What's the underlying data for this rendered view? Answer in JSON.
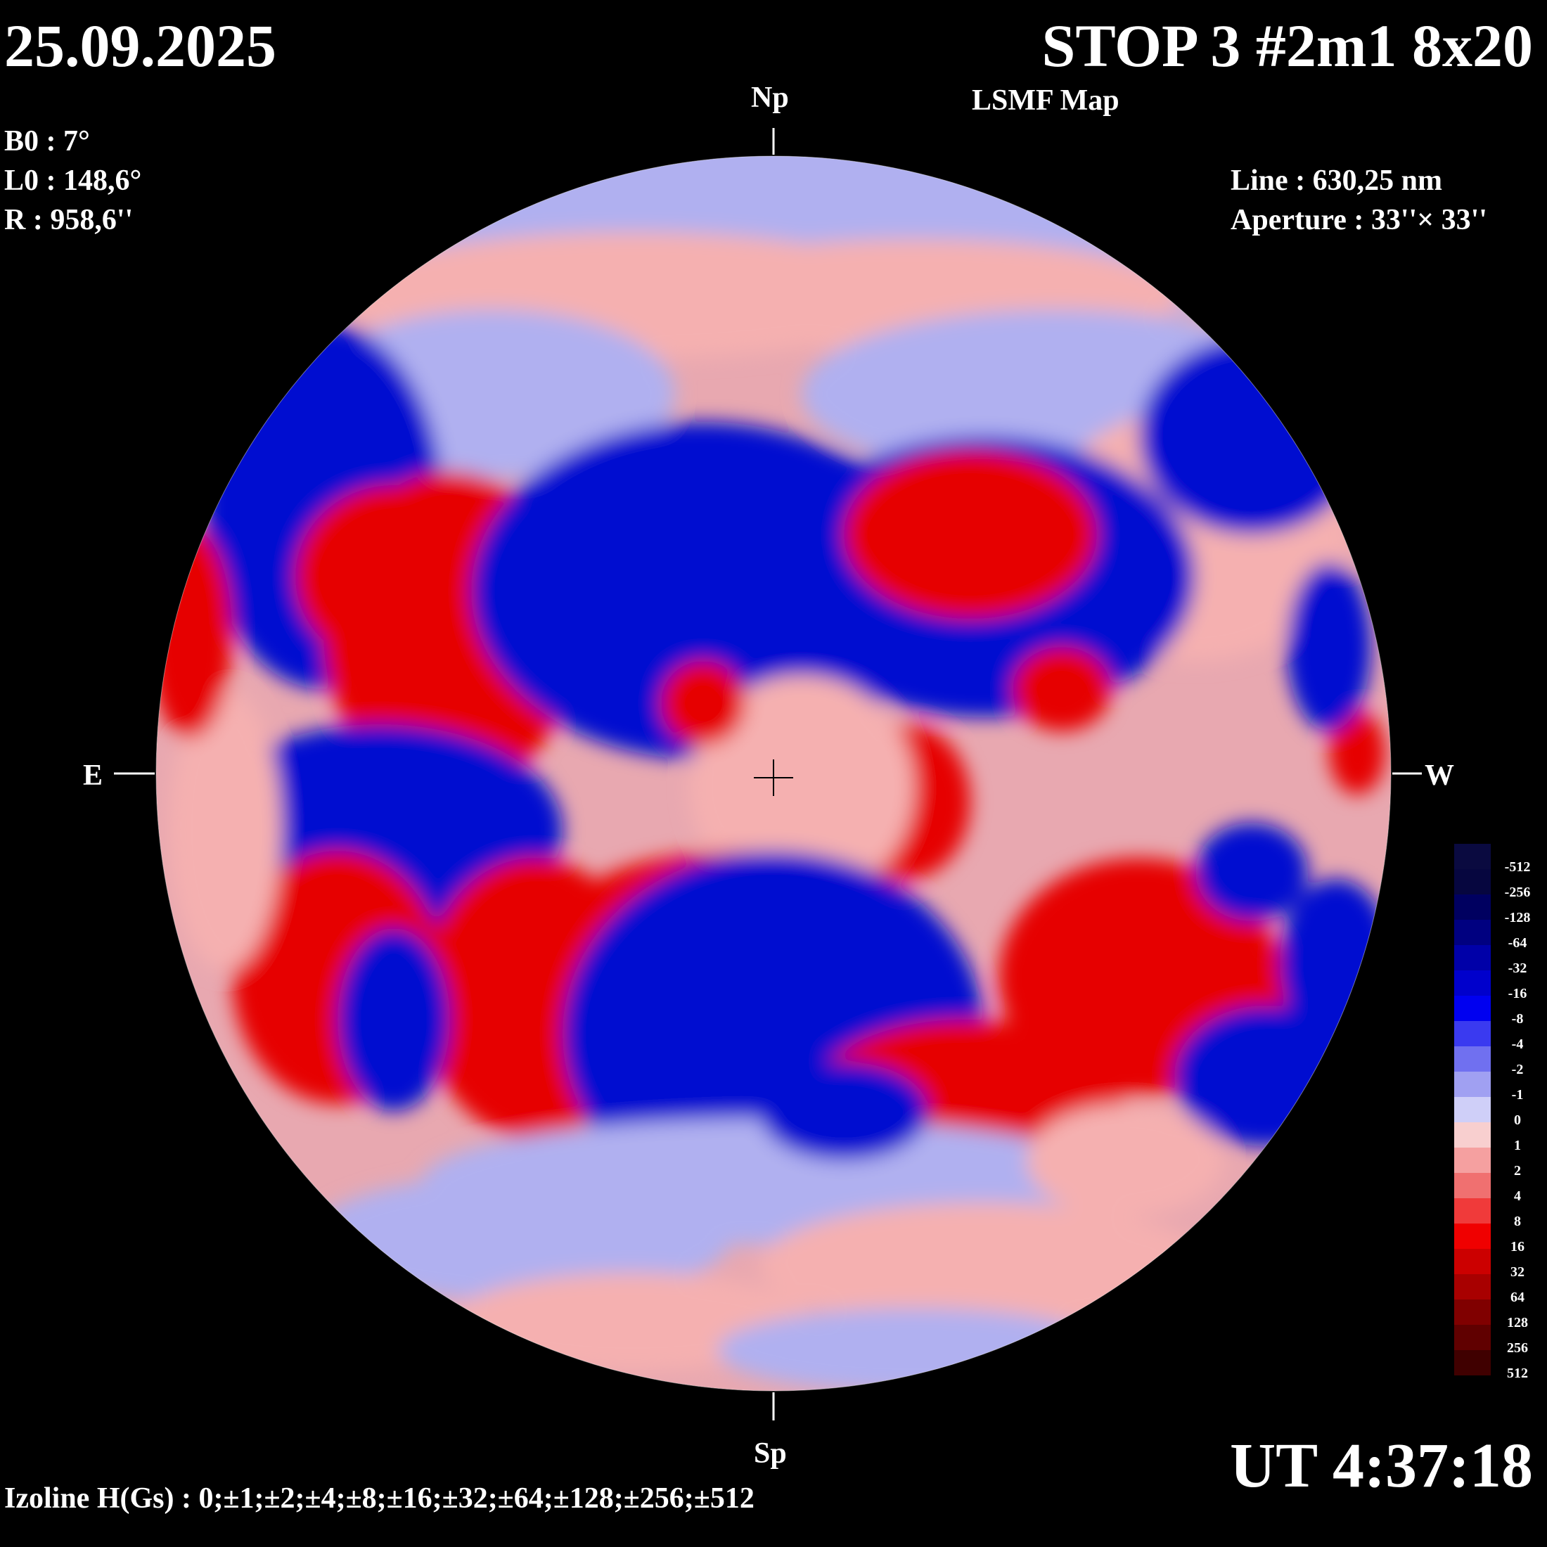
{
  "header": {
    "date": "25.09.2025",
    "title": "STOP 3 #2m1 8x20",
    "subtitle": "LSMF  Map"
  },
  "params": {
    "b0": "B0 : 7°",
    "l0": "L0 : 148,6°",
    "r": "R  : 958,6''"
  },
  "instrument": {
    "line": "Line :  630,25 nm",
    "aperture": "Aperture : 33''× 33''"
  },
  "directions": {
    "north": "Np",
    "south": "Sp",
    "east": "E",
    "west": "W"
  },
  "time": "UT 4:37:18",
  "izoline": "Izoline H(Gs) : 0;±1;±2;±4;±8;±16;±32;±64;±128;±256;±512",
  "scale": {
    "labels": [
      "-512",
      "-256",
      "-128",
      "-64",
      "-32",
      "-16",
      "-8",
      "-4",
      "-2",
      "-1",
      "0",
      "1",
      "2",
      "4",
      "8",
      "16",
      "32",
      "64",
      "128",
      "256",
      "512"
    ],
    "colors": [
      "#0a0a40",
      "#06063f",
      "#000060",
      "#000080",
      "#0000a8",
      "#0000cc",
      "#0000f0",
      "#3a3af0",
      "#7070f0",
      "#a0a0f2",
      "#cfcff8",
      "#f8cfcf",
      "#f5a0a0",
      "#f07070",
      "#f03a3a",
      "#f00000",
      "#cc0000",
      "#a80000",
      "#800000",
      "#600000",
      "#400000"
    ]
  },
  "colors": {
    "positive": "#e60000",
    "negative": "#0010d0",
    "neutral_pos": "#f5b0b0",
    "neutral_neg": "#b0b0f0"
  }
}
